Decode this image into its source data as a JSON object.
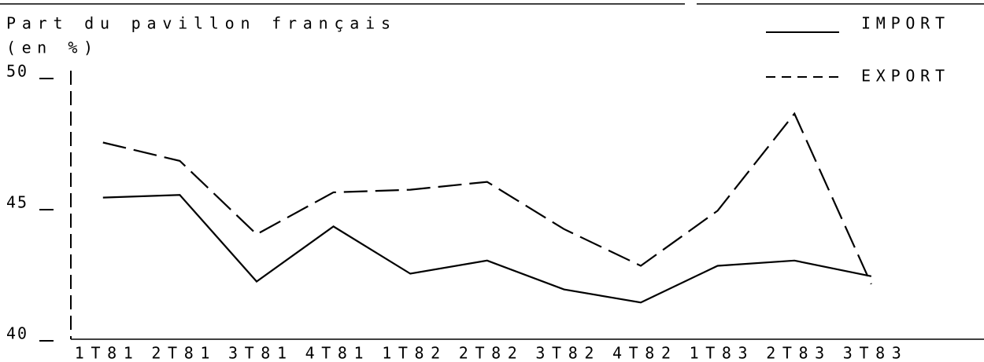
{
  "chart_data": {
    "type": "line",
    "title": "Part du pavillon français",
    "subtitle": "(en %)",
    "categories": [
      "1T81",
      "2T81",
      "3T81",
      "4T81",
      "1T82",
      "2T82",
      "3T82",
      "4T82",
      "1T83",
      "2T83",
      "3T83"
    ],
    "series": [
      {
        "name": "IMPORT",
        "color": "#000000",
        "dash": "solid",
        "values": [
          45.4,
          45.5,
          42.2,
          44.3,
          42.5,
          43.0,
          41.9,
          41.4,
          42.8,
          43.0,
          42.4
        ]
      },
      {
        "name": "EXPORT",
        "color": "#000000",
        "dash": "dashed",
        "values": [
          47.5,
          46.8,
          44.0,
          45.6,
          45.7,
          46.0,
          44.2,
          42.8,
          44.9,
          48.6,
          42.1
        ]
      }
    ],
    "ylim": [
      40,
      50
    ],
    "yticks": [
      40,
      45,
      50
    ],
    "grid": false,
    "legend": "top-right"
  }
}
